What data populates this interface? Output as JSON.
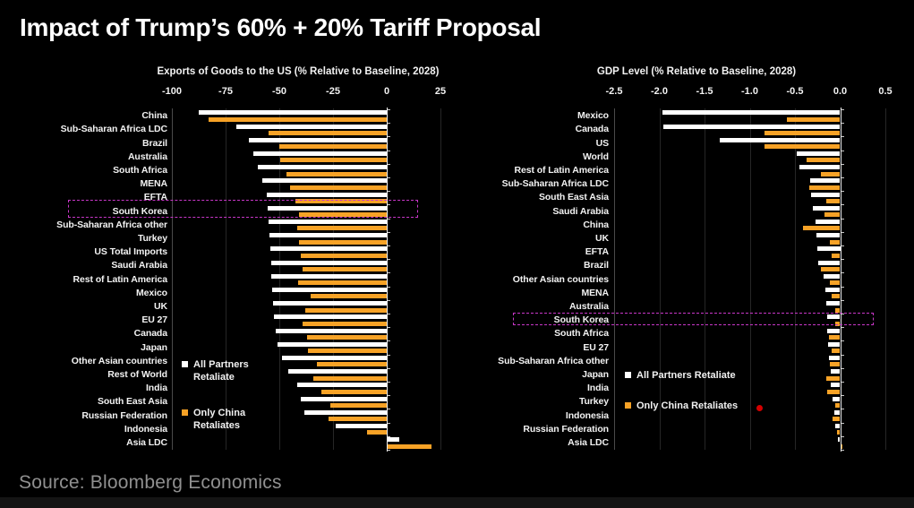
{
  "title": "Impact of Trump’s 60% + 20% Tariff Proposal",
  "source": "Source: Bloomberg Economics",
  "legend": {
    "all_partners": "All Partners Retaliate",
    "only_china": "Only China Retaliates"
  },
  "colors": {
    "background": "#000000",
    "bar_all_partners": "#ffffff",
    "bar_only_china": "#f7a226",
    "highlight_box": "#c837c8",
    "red_dot": "#d40000",
    "text": "#f2f2f2",
    "source_text": "#909090"
  },
  "chart_data": [
    {
      "type": "bar",
      "orientation": "horizontal",
      "title": "Exports of Goods to the US (% Relative to Baseline, 2028)",
      "x_tick_labels": [
        "-100",
        "-75",
        "-50",
        "-25",
        "0",
        "25"
      ],
      "xlim": [
        -100,
        25
      ],
      "grid": true,
      "legend_position": "inside-left",
      "highlight_category": "South Korea",
      "categories": [
        "China",
        "Sub-Saharan Africa LDC",
        "Brazil",
        "Australia",
        "South Africa",
        "MENA",
        "EFTA",
        "South Korea",
        "Sub-Saharan Africa other",
        "Turkey",
        "US Total Imports",
        "Saudi Arabia",
        "Rest of Latin America",
        "Mexico",
        "UK",
        "EU 27",
        "Canada",
        "Japan",
        "Other Asian countries",
        "Rest of World",
        "India",
        "South East Asia",
        "Russian Federation",
        "Indonesia",
        "Asia LDC"
      ],
      "series": [
        {
          "name": "All Partners Retaliate",
          "values": [
            -87.5,
            -70,
            -64,
            -62,
            -60,
            -58,
            -56,
            -55.5,
            -55,
            -54.5,
            -54,
            -53.8,
            -53.6,
            -53.4,
            -53,
            -52.3,
            -51.5,
            -50.7,
            -48.6,
            -45.8,
            -41.7,
            -40,
            -38.5,
            -23.6,
            6
          ]
        },
        {
          "name": "Only China Retaliates",
          "values": [
            -83,
            -55,
            -50,
            -49.5,
            -46.5,
            -45,
            -42.5,
            -41,
            -41.5,
            -41,
            -40,
            -39.3,
            -41.3,
            -35.4,
            -38,
            -39,
            -37,
            -36.8,
            -32.7,
            -34.3,
            -30.6,
            -26.4,
            -27.1,
            -9,
            20.7
          ]
        }
      ]
    },
    {
      "type": "bar",
      "orientation": "horizontal",
      "title": "GDP Level (% Relative to Baseline, 2028)",
      "x_tick_labels": [
        "-2.5",
        "-2.0",
        "-1.5",
        "-1.0",
        "-0.5",
        "0.0",
        "0.5"
      ],
      "xlim": [
        -2.5,
        0.5
      ],
      "grid": true,
      "legend_position": "inside-left",
      "highlight_category": "South Korea",
      "categories": [
        "Mexico",
        "Canada",
        "US",
        "World",
        "Rest of Latin America",
        "Sub-Saharan Africa LDC",
        "South East Asia",
        "Saudi Arabia",
        "China",
        "UK",
        "EFTA",
        "Brazil",
        "Other Asian countries",
        "MENA",
        "Australia",
        "South Korea",
        "South Africa",
        "EU 27",
        "Sub-Saharan Africa other",
        "Japan",
        "India",
        "Turkey",
        "Indonesia",
        "Russian Federation",
        "Asia LDC"
      ],
      "series": [
        {
          "name": "All Partners Retaliate",
          "values": [
            -1.97,
            -1.96,
            -1.33,
            -0.48,
            -0.45,
            -0.33,
            -0.32,
            -0.3,
            -0.27,
            -0.26,
            -0.25,
            -0.24,
            -0.18,
            -0.16,
            -0.15,
            -0.145,
            -0.14,
            -0.13,
            -0.12,
            -0.1,
            -0.1,
            -0.08,
            -0.06,
            -0.05,
            -0.02
          ]
        },
        {
          "name": "Only China Retaliates",
          "values": [
            -0.59,
            -0.84,
            -0.84,
            -0.37,
            -0.21,
            -0.34,
            -0.15,
            -0.17,
            -0.41,
            -0.11,
            -0.09,
            -0.21,
            -0.11,
            -0.09,
            -0.05,
            -0.05,
            -0.12,
            -0.09,
            -0.11,
            -0.15,
            -0.14,
            -0.05,
            -0.08,
            -0.03,
            0.02
          ]
        }
      ]
    }
  ]
}
